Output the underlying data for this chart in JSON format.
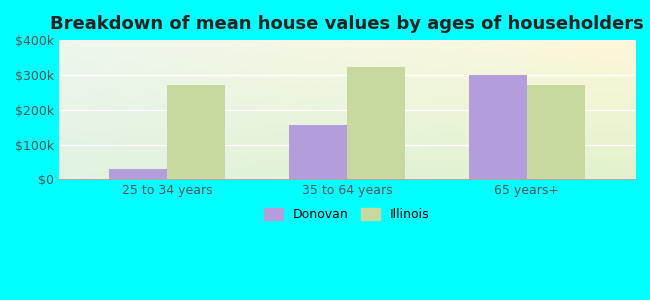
{
  "title": "Breakdown of mean house values by ages of householders",
  "categories": [
    "25 to 34 years",
    "35 to 64 years",
    "65 years+"
  ],
  "donovan_values": [
    30000,
    155000,
    300000
  ],
  "illinois_values": [
    272000,
    322000,
    270000
  ],
  "ylim": [
    0,
    400000
  ],
  "yticks": [
    0,
    100000,
    200000,
    300000,
    400000
  ],
  "ytick_labels": [
    "$0",
    "$100k",
    "$200k",
    "$300k",
    "$400k"
  ],
  "donovan_color": "#b39ddb",
  "illinois_color": "#c8d9a0",
  "background_color": "#00ffff",
  "legend_labels": [
    "Donovan",
    "Illinois"
  ],
  "bar_width": 0.32,
  "title_fontsize": 13,
  "tick_fontsize": 9,
  "legend_fontsize": 9,
  "tick_color": "#555555",
  "grid_color": "#ffffff"
}
